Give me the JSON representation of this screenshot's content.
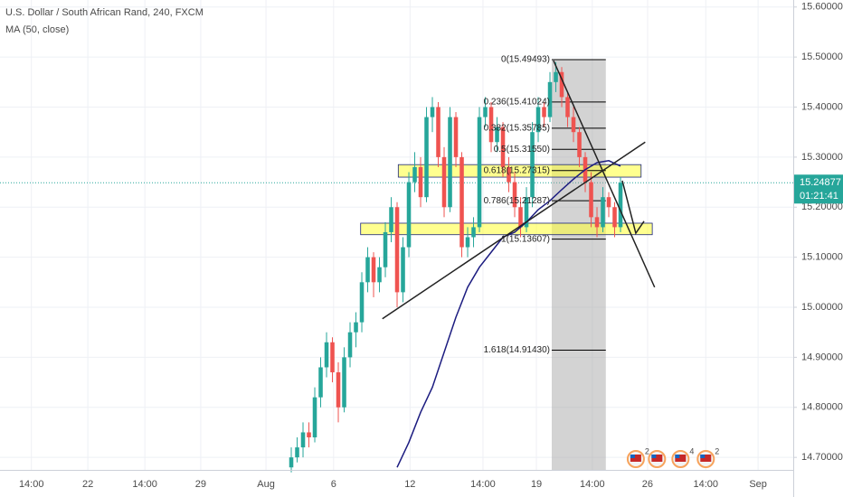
{
  "chart_data": {
    "type": "candlestick",
    "title": "U.S. Dollar / South African Rand, 240, FXCM",
    "xlim": [
      -49.54,
      85.38
    ],
    "xticks": [
      {
        "value": -44.2,
        "label": "14:00"
      },
      {
        "value": -34.6,
        "label": "22"
      },
      {
        "value": -24.9,
        "label": "14:00"
      },
      {
        "value": -15.4,
        "label": "29"
      },
      {
        "value": -4.3,
        "label": "Aug"
      },
      {
        "value": 7.2,
        "label": "6"
      },
      {
        "value": 20.2,
        "label": "12"
      },
      {
        "value": 32.6,
        "label": "14:00"
      },
      {
        "value": 41.7,
        "label": "19"
      },
      {
        "value": 51.2,
        "label": "14:00"
      },
      {
        "value": 60.6,
        "label": "26"
      },
      {
        "value": 70.5,
        "label": "14:00"
      },
      {
        "value": 79.4,
        "label": "Sep"
      }
    ],
    "ylim": [
      14.675,
      15.614
    ],
    "yticks": [
      {
        "value": 15.6,
        "label": "15.60000"
      },
      {
        "value": 15.5,
        "label": "15.50000"
      },
      {
        "value": 15.4,
        "label": "15.40000"
      },
      {
        "value": 15.3,
        "label": "15.30000"
      },
      {
        "value": 15.2,
        "label": "15.20000"
      },
      {
        "value": 15.1,
        "label": "15.10000"
      },
      {
        "value": 15.0,
        "label": "15.00000"
      },
      {
        "value": 14.9,
        "label": "14.90000"
      },
      {
        "value": 14.8,
        "label": "14.80000"
      },
      {
        "value": 14.7,
        "label": "14.70000"
      }
    ],
    "grid": true,
    "up_color": "#26a69a",
    "down_color": "#ef5350",
    "series": [
      {
        "name": "USD/ZAR",
        "x": [
          0,
          1,
          2,
          3,
          4,
          5,
          6,
          7,
          8,
          9,
          10,
          11,
          12,
          13,
          14,
          15,
          16,
          17,
          18,
          19,
          20,
          21,
          22,
          23,
          24,
          25,
          26,
          27,
          28,
          29,
          30,
          31,
          32,
          33,
          34,
          35,
          36,
          37,
          38,
          39,
          40,
          41,
          42,
          43,
          44,
          45,
          46,
          47,
          48,
          49,
          50,
          51,
          52,
          53,
          54,
          55,
          56
        ],
        "values": [
          [
            14.68,
            14.72,
            14.67,
            14.7
          ],
          [
            14.7,
            14.74,
            14.69,
            14.72
          ],
          [
            14.72,
            14.77,
            14.7,
            14.75
          ],
          [
            14.75,
            14.77,
            14.72,
            14.74
          ],
          [
            14.74,
            14.84,
            14.73,
            14.82
          ],
          [
            14.82,
            14.9,
            14.8,
            14.88
          ],
          [
            14.88,
            14.95,
            14.86,
            14.93
          ],
          [
            14.93,
            14.94,
            14.85,
            14.87
          ],
          [
            14.87,
            14.89,
            14.77,
            14.8
          ],
          [
            14.8,
            14.92,
            14.79,
            14.9
          ],
          [
            14.9,
            14.97,
            14.88,
            14.95
          ],
          [
            14.95,
            14.99,
            14.92,
            14.97
          ],
          [
            14.97,
            15.07,
            14.95,
            15.05
          ],
          [
            15.05,
            15.12,
            15.03,
            15.1
          ],
          [
            15.1,
            15.11,
            15.02,
            15.05
          ],
          [
            15.05,
            15.1,
            15.03,
            15.08
          ],
          [
            15.08,
            15.17,
            15.06,
            15.15
          ],
          [
            15.15,
            15.22,
            15.13,
            15.2
          ],
          [
            15.2,
            15.21,
            15.0,
            15.03
          ],
          [
            15.03,
            15.14,
            15.01,
            15.12
          ],
          [
            15.12,
            15.27,
            15.1,
            15.25
          ],
          [
            15.25,
            15.31,
            15.23,
            15.28
          ],
          [
            15.28,
            15.3,
            15.2,
            15.22
          ],
          [
            15.22,
            15.4,
            15.21,
            15.38
          ],
          [
            15.38,
            15.42,
            15.35,
            15.4
          ],
          [
            15.4,
            15.41,
            15.28,
            15.3
          ],
          [
            15.3,
            15.32,
            15.18,
            15.2
          ],
          [
            15.2,
            15.4,
            15.19,
            15.38
          ],
          [
            15.38,
            15.39,
            15.28,
            15.3
          ],
          [
            15.3,
            15.31,
            15.1,
            15.12
          ],
          [
            15.12,
            15.16,
            15.1,
            15.14
          ],
          [
            15.14,
            15.18,
            15.12,
            15.16
          ],
          [
            15.16,
            15.4,
            15.15,
            15.38
          ],
          [
            15.38,
            15.42,
            15.36,
            15.4
          ],
          [
            15.4,
            15.41,
            15.31,
            15.33
          ],
          [
            15.33,
            15.38,
            15.31,
            15.36
          ],
          [
            15.36,
            15.37,
            15.26,
            15.28
          ],
          [
            15.28,
            15.3,
            15.23,
            15.25
          ],
          [
            15.25,
            15.27,
            15.18,
            15.2
          ],
          [
            15.2,
            15.22,
            15.14,
            15.16
          ],
          [
            15.16,
            15.24,
            15.15,
            15.22
          ],
          [
            15.22,
            15.37,
            15.2,
            15.35
          ],
          [
            15.35,
            15.42,
            15.33,
            15.4
          ],
          [
            15.4,
            15.41,
            15.36,
            15.38
          ],
          [
            15.38,
            15.47,
            15.37,
            15.45
          ],
          [
            15.45,
            15.49,
            15.43,
            15.47
          ],
          [
            15.47,
            15.48,
            15.4,
            15.42
          ],
          [
            15.42,
            15.43,
            15.36,
            15.38
          ],
          [
            15.38,
            15.4,
            15.33,
            15.35
          ],
          [
            15.35,
            15.36,
            15.28,
            15.3
          ],
          [
            15.3,
            15.31,
            15.23,
            15.25
          ],
          [
            15.25,
            15.27,
            15.16,
            15.18
          ],
          [
            15.18,
            15.2,
            15.14,
            15.16
          ],
          [
            15.16,
            15.24,
            15.15,
            15.22
          ],
          [
            15.22,
            15.23,
            15.18,
            15.2
          ],
          [
            15.2,
            15.21,
            15.14,
            15.16
          ],
          [
            15.16,
            15.26,
            15.15,
            15.24877
          ]
        ]
      },
      {
        "name": "MA (50, close)",
        "color": "#1c1c80",
        "x": [
          18,
          20,
          22,
          24,
          26,
          28,
          30,
          32,
          34,
          36,
          38,
          40,
          42,
          44,
          46,
          48,
          50,
          52,
          54,
          56
        ],
        "values": [
          14.68,
          14.73,
          14.79,
          14.84,
          14.91,
          14.98,
          15.04,
          15.08,
          15.11,
          15.14,
          15.15,
          15.17,
          15.195,
          15.213,
          15.235,
          15.256,
          15.275,
          15.289,
          15.293,
          15.282
        ]
      }
    ],
    "last_price": {
      "value": 15.24877,
      "label": "15.24877",
      "color": "#26a69a"
    },
    "countdown": "01:21:41",
    "fib": {
      "x_start": 44.3,
      "x_end": 53.5,
      "levels": [
        {
          "value": 15.49493,
          "label": "0(15.49493)"
        },
        {
          "value": 15.41024,
          "label": "0.236(15.41024)"
        },
        {
          "value": 15.35785,
          "label": "0.382(15.35785)"
        },
        {
          "value": 15.3155,
          "label": "0.5(15.31550)"
        },
        {
          "value": 15.27315,
          "label": "0.618(15.27315)"
        },
        {
          "value": 15.21287,
          "label": "0.786(15.21287)"
        },
        {
          "value": 15.13607,
          "label": "1(15.13607)"
        },
        {
          "value": 14.9143,
          "label": "1.618(14.91430)"
        }
      ]
    },
    "zones": [
      {
        "x": [
          18.2,
          59.5
        ],
        "y": [
          15.26,
          15.285
        ]
      },
      {
        "x": [
          11.8,
          61.4
        ],
        "y": [
          15.145,
          15.168
        ]
      }
    ],
    "trendlines": [
      {
        "x": [
          15.5,
          60.2
        ],
        "y": [
          14.977,
          15.33
        ]
      },
      {
        "x": [
          44.6,
          61.8
        ],
        "y": [
          15.493,
          15.04
        ]
      },
      {
        "x": [
          56.3,
          58.6,
          60
        ],
        "y": [
          15.253,
          15.148,
          15.172
        ]
      }
    ],
    "events": [
      {
        "x": 58.6,
        "label": "2"
      },
      {
        "x": 62.2,
        "label": ""
      },
      {
        "x": 66.2,
        "label": "4"
      },
      {
        "x": 70.5,
        "label": "2"
      }
    ]
  }
}
